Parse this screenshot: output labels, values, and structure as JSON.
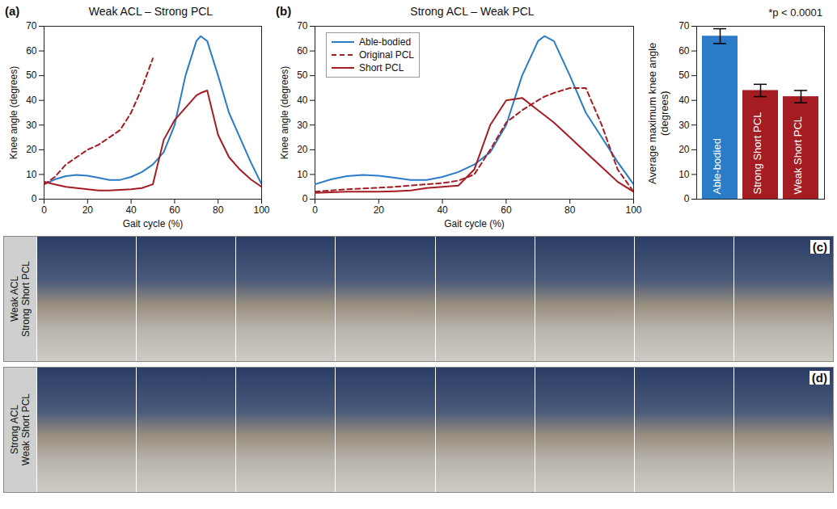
{
  "chart_data": [
    {
      "panel": "(a)",
      "type": "line",
      "title": "Weak ACL – Strong PCL",
      "x_label": "Gait cycle (%)",
      "y_label": "Knee angle (degrees)",
      "xlim": [
        0,
        100
      ],
      "xticks": [
        0,
        20,
        40,
        60,
        80,
        100
      ],
      "ylim": [
        0,
        70
      ],
      "yticks": [
        0,
        10,
        20,
        30,
        40,
        50,
        60,
        70
      ],
      "x": [
        0,
        5,
        10,
        15,
        20,
        25,
        30,
        35,
        40,
        45,
        50,
        55,
        60,
        65,
        70,
        72,
        75,
        80,
        85,
        90,
        95,
        100
      ],
      "series": [
        {
          "name": "Able-bodied",
          "color": "#2a7bc8",
          "line_style": "solid",
          "values": [
            6,
            8,
            9.3,
            9.8,
            9.5,
            8.7,
            7.8,
            7.8,
            9,
            11,
            14,
            19,
            30,
            50,
            64,
            66,
            64,
            50,
            35,
            25,
            15,
            6
          ]
        },
        {
          "name": "Original PCL",
          "color": "#a51c22",
          "line_style": "dashed",
          "values": [
            6,
            9,
            14,
            17,
            20,
            22,
            25,
            28,
            35,
            45,
            57,
            null,
            null,
            null,
            null,
            null,
            null,
            null,
            null,
            null,
            null,
            null
          ]
        },
        {
          "name": "Short PCL",
          "color": "#a51c22",
          "line_style": "solid",
          "values": [
            7,
            6,
            5,
            4.5,
            4,
            3.5,
            3.5,
            3.8,
            4,
            4.5,
            6,
            24,
            32,
            37,
            42,
            43,
            44,
            26,
            17,
            12,
            8,
            5
          ]
        }
      ]
    },
    {
      "panel": "(b)",
      "type": "line",
      "title": "Strong ACL – Weak PCL",
      "x_label": "Gait cycle (%)",
      "y_label": "Knee angle (degrees)",
      "xlim": [
        0,
        100
      ],
      "xticks": [
        0,
        20,
        40,
        60,
        80,
        100
      ],
      "ylim": [
        0,
        70
      ],
      "yticks": [
        0,
        10,
        20,
        30,
        40,
        50,
        60,
        70
      ],
      "legend": "upper left",
      "x": [
        0,
        5,
        10,
        15,
        20,
        25,
        30,
        35,
        40,
        45,
        50,
        55,
        60,
        65,
        70,
        72,
        75,
        80,
        85,
        90,
        95,
        100
      ],
      "series": [
        {
          "name": "Able-bodied",
          "color": "#2a7bc8",
          "line_style": "solid",
          "values": [
            6,
            8,
            9.3,
            9.8,
            9.5,
            8.7,
            7.8,
            7.8,
            9,
            11,
            14,
            19,
            30,
            50,
            64,
            66,
            64,
            50,
            35,
            25,
            15,
            6
          ]
        },
        {
          "name": "Original PCL",
          "color": "#a51c22",
          "line_style": "dashed",
          "values": [
            3,
            3.5,
            4,
            4.3,
            4.6,
            5,
            5.5,
            6,
            6.5,
            7.5,
            10,
            20,
            31,
            36,
            40,
            41.5,
            43,
            45,
            45,
            30,
            12,
            3
          ]
        },
        {
          "name": "Short PCL",
          "color": "#a51c22",
          "line_style": "solid",
          "values": [
            2.5,
            2.8,
            3,
            3,
            3,
            3.2,
            3.5,
            4.5,
            5,
            5.5,
            12,
            30,
            40,
            41,
            36,
            34,
            31,
            25,
            19,
            13,
            7,
            3
          ]
        }
      ]
    },
    {
      "type": "bar",
      "y_label": "Average maximum knee angle (degrees)",
      "annotation": "*p < 0.0001",
      "categories": [
        "Able-bodied",
        "Strong Short PCL",
        "Weak Short PCL"
      ],
      "values": [
        66,
        44,
        41.5
      ],
      "errors": [
        3,
        2.5,
        2.5
      ],
      "colors": [
        "#2a7bc8",
        "#a51c22",
        "#a51c22"
      ],
      "ylim": [
        0,
        70
      ],
      "yticks": [
        0,
        10,
        20,
        30,
        40,
        50,
        60,
        70
      ],
      "tick_labels": "y"
    }
  ],
  "photo_panels": [
    {
      "panel": "(c)",
      "label_lines": [
        "Weak ACL",
        "Strong Short PCL"
      ]
    },
    {
      "panel": "(d)",
      "label_lines": [
        "Strong  ACL",
        "Weak Short PCL"
      ]
    }
  ]
}
